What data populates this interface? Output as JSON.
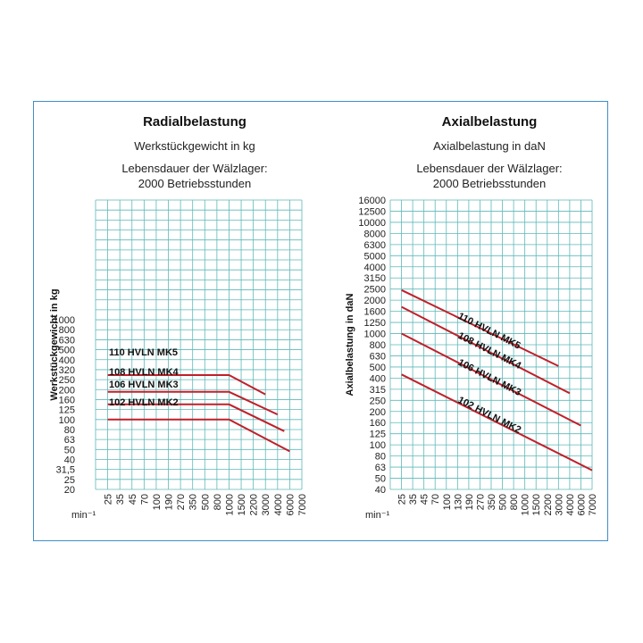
{
  "colors": {
    "frame": "#3f8fc9",
    "grid": "#5fb8b8",
    "curve": "#c0202a",
    "text": "#111111"
  },
  "chart_data": [
    {
      "type": "line",
      "title": "Radialbelastung",
      "subtitle": "Werkstückgewicht in kg",
      "note_line1": "Lebensdauer der Wälzlager:",
      "note_line2": "2000 Betriebsstunden",
      "xlabel": "min⁻¹",
      "ylabel": "Werkstückgewicht in kg",
      "x_ticks": [
        "25",
        "35",
        "45",
        "70",
        "100",
        "190",
        "270",
        "350",
        "500",
        "800",
        "1000",
        "1500",
        "2200",
        "3000",
        "4000",
        "6000",
        "7000"
      ],
      "y_ticks": [
        "20",
        "25",
        "31,5",
        "40",
        "50",
        "63",
        "80",
        "100",
        "125",
        "160",
        "200",
        "250",
        "320",
        "400",
        "500",
        "630",
        "800",
        "1000"
      ],
      "y_scale": "log",
      "grid": true,
      "series": [
        {
          "name": "110 HVLN MK5",
          "points": [
            [
              25,
              280
            ],
            [
              1000,
              280
            ],
            [
              3000,
              180
            ]
          ]
        },
        {
          "name": "108 HVLN MK4",
          "points": [
            [
              25,
              190
            ],
            [
              1000,
              190
            ],
            [
              4000,
              112
            ]
          ]
        },
        {
          "name": "106 HVLN MK3",
          "points": [
            [
              25,
              142
            ],
            [
              1000,
              142
            ],
            [
              5000,
              77
            ]
          ]
        },
        {
          "name": "102 HVLN MK2",
          "points": [
            [
              25,
              100
            ],
            [
              1000,
              100
            ],
            [
              6000,
              48
            ]
          ]
        }
      ]
    },
    {
      "type": "line",
      "title": "Axialbelastung",
      "subtitle": "Axialbelastung in daN",
      "note_line1": "Lebensdauer der Wälzlager:",
      "note_line2": "2000 Betriebsstunden",
      "xlabel": "min⁻¹",
      "ylabel": "Axialbelastung in daN",
      "x_ticks": [
        "25",
        "35",
        "45",
        "70",
        "100",
        "130",
        "190",
        "270",
        "350",
        "500",
        "800",
        "1000",
        "1500",
        "2200",
        "3000",
        "4000",
        "6000",
        "7000"
      ],
      "y_ticks": [
        "40",
        "50",
        "63",
        "80",
        "100",
        "125",
        "160",
        "200",
        "250",
        "315",
        "400",
        "500",
        "630",
        "800",
        "1000",
        "1250",
        "1600",
        "2000",
        "2500",
        "3150",
        "4000",
        "5000",
        "6300",
        "8000",
        "10000",
        "12500",
        "16000"
      ],
      "y_scale": "log",
      "grid": true,
      "series": [
        {
          "name": "110 HVLN MK5",
          "points": [
            [
              25,
              2450
            ],
            [
              3000,
              510
            ]
          ]
        },
        {
          "name": "108 HVLN MK4",
          "points": [
            [
              25,
              1750
            ],
            [
              4000,
              290
            ]
          ]
        },
        {
          "name": "106 HVLN MK3",
          "points": [
            [
              25,
              1000
            ],
            [
              6000,
              150
            ]
          ]
        },
        {
          "name": "102 HVLN MK2",
          "points": [
            [
              25,
              430
            ],
            [
              7000,
              59
            ]
          ]
        }
      ]
    }
  ]
}
